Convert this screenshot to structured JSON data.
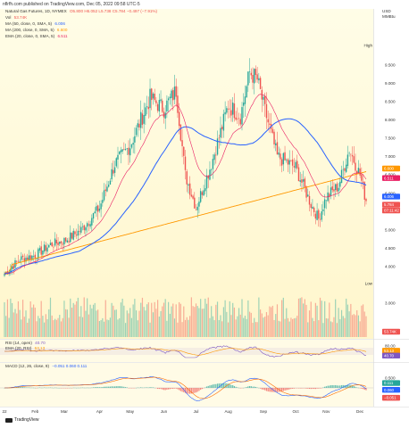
{
  "header": {
    "published": "nflrfh.com published on TradingView.com, Dec 05, 2022 09:58 UTC-5"
  },
  "legend": {
    "main": "Natural Gas Futures, 1D, NYMEX",
    "ohlc": "O5.800 H6.052 L5.738 C5.784 −0.497 (−7.91%)",
    "vol_label": "Vol",
    "vol_value": "53.74K",
    "ma50_label": "MA (50, close, 0, SMA, 5)",
    "ma50_value": "6.006",
    "ma200_label": "MA (200, close, 0, SMA, 5)",
    "ma200_value": "6.600",
    "ema20_label": "EMA (20, close, 0, SMA, 5)",
    "ema20_value": "6.511",
    "rsi_label": "RSI (14, open)",
    "rsi_value": "40.70",
    "rsi_ema_label": "EMA (20, RSI)",
    "rsi_ema_value": "53.13",
    "macd_label": "MACD (12, 26, close, 9)",
    "macd_values": "−0.051  0.060  0.111"
  },
  "colors": {
    "up": "#26a69a",
    "down": "#ef5350",
    "ma50": "#2962ff",
    "ma200": "#ff9800",
    "ema20": "#e91e63",
    "rsi": "#7e57c2",
    "macd": "#2962ff",
    "signal": "#ff6d00",
    "bg_top": "#fffde7",
    "bg_bottom": "#fff6cc"
  },
  "axis": {
    "currency": "USD",
    "unit": "MMBtu",
    "price_ticks": [
      "9.500",
      "9.000",
      "8.500",
      "8.000",
      "7.500",
      "7.000",
      "6.500",
      "6.000",
      "5.500",
      "5.000",
      "4.500",
      "4.000",
      "3.500",
      "3.000"
    ],
    "months": [
      "22",
      "Feb",
      "Mar",
      "Apr",
      "May",
      "Jun",
      "Jul",
      "Aug",
      "Sep",
      "Oct",
      "Nov",
      "Dec"
    ],
    "rsi_ticks": [
      "80.00",
      "20.00"
    ],
    "macd_ticks": [
      "0.500",
      "−0.500"
    ]
  },
  "tags": {
    "high_label": "High",
    "high_value": "10.028",
    "low_label": "Low",
    "low_value": "3.536",
    "ma200": "6.600",
    "ema20": "6.511",
    "ma50": "6.006",
    "close": "5.784",
    "countdown": "07:11:42",
    "vol": "53.74K",
    "rsi_ema": "53.13",
    "rsi": "40.70",
    "macd_a": "0.111",
    "macd_b": "0.060",
    "macd_c": "−0.051"
  },
  "footer": {
    "brand": "TradingView"
  },
  "chart_data": {
    "type": "candlestick",
    "title": "Natural Gas Futures, 1D, NYMEX",
    "ylim": [
      3.0,
      10.2
    ],
    "months": [
      "22",
      "Feb",
      "Mar",
      "Apr",
      "May",
      "Jun",
      "Jul",
      "Aug",
      "Sep",
      "Oct",
      "Nov",
      "Dec"
    ],
    "month_start_index": [
      0,
      20,
      39,
      62,
      82,
      104,
      125,
      146,
      169,
      190,
      210,
      232
    ],
    "close_waypoints": [
      [
        0,
        3.8
      ],
      [
        10,
        4.2
      ],
      [
        20,
        4.3
      ],
      [
        30,
        4.6
      ],
      [
        39,
        4.7
      ],
      [
        50,
        5.0
      ],
      [
        62,
        5.6
      ],
      [
        72,
        6.8
      ],
      [
        82,
        7.3
      ],
      [
        95,
        8.6
      ],
      [
        104,
        8.3
      ],
      [
        112,
        8.8
      ],
      [
        118,
        6.5
      ],
      [
        125,
        5.6
      ],
      [
        135,
        6.8
      ],
      [
        146,
        8.4
      ],
      [
        154,
        8.1
      ],
      [
        160,
        9.3
      ],
      [
        165,
        9.1
      ],
      [
        169,
        8.4
      ],
      [
        178,
        7.0
      ],
      [
        190,
        6.7
      ],
      [
        200,
        5.7
      ],
      [
        205,
        5.3
      ],
      [
        210,
        5.9
      ],
      [
        218,
        6.2
      ],
      [
        225,
        7.2
      ],
      [
        232,
        6.5
      ],
      [
        236,
        5.78
      ]
    ],
    "series": [
      {
        "name": "MA (50)",
        "last": 6.006
      },
      {
        "name": "MA (200)",
        "last": 6.6
      },
      {
        "name": "EMA (20)",
        "last": 6.511
      },
      {
        "name": "Vol",
        "last": 53740
      },
      {
        "name": "RSI (14)",
        "last": 40.7
      },
      {
        "name": "EMA (20, RSI)",
        "last": 53.13
      },
      {
        "name": "MACD",
        "values_last": [
          -0.051,
          0.06,
          0.111
        ]
      }
    ],
    "high": 10.028,
    "low": 3.536
  }
}
